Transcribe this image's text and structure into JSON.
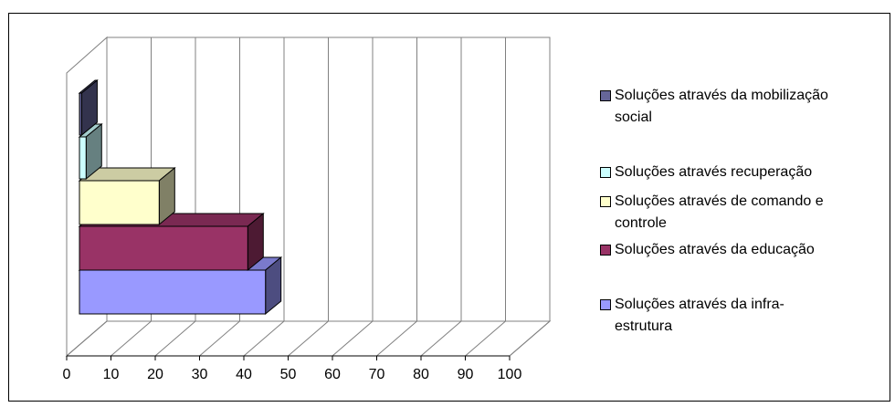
{
  "chart_data": {
    "type": "bar",
    "orientation": "horizontal",
    "three_d": true,
    "title": "",
    "xlabel": "",
    "ylabel": "",
    "xlim": [
      0,
      100
    ],
    "x_ticks": [
      "0",
      "10",
      "20",
      "30",
      "40",
      "50",
      "60",
      "70",
      "80",
      "90",
      "100"
    ],
    "grid": true,
    "legend_position": "right",
    "series": [
      {
        "name": "Soluções através da infra-estrutura",
        "label_lines": [
          "Soluções através da infra-",
          "estrutura"
        ],
        "value": 42,
        "color": "#9999ff",
        "side_color": "#4d4d80",
        "top_color": "#7a7acc"
      },
      {
        "name": "Soluções através da educação",
        "label_lines": [
          "Soluções através da educação"
        ],
        "value": 38,
        "color": "#993366",
        "side_color": "#4d1a33",
        "top_color": "#7a2952"
      },
      {
        "name": "Soluções através de comando e controle",
        "label_lines": [
          "Soluções através de comando e",
          "controle"
        ],
        "value": 18,
        "color": "#ffffcc",
        "side_color": "#808066",
        "top_color": "#ccccA3"
      },
      {
        "name": "Soluções através recuperação",
        "label_lines": [
          "Soluções através recuperação"
        ],
        "value": 1.5,
        "color": "#ccffff",
        "side_color": "#668080",
        "top_color": "#a3cccc"
      },
      {
        "name": "Soluções através da mobilização social",
        "label_lines": [
          "Soluções através da mobilização",
          "social"
        ],
        "value": 0.5,
        "color": "#666699",
        "side_color": "#33334d",
        "top_color": "#52527a"
      }
    ]
  }
}
